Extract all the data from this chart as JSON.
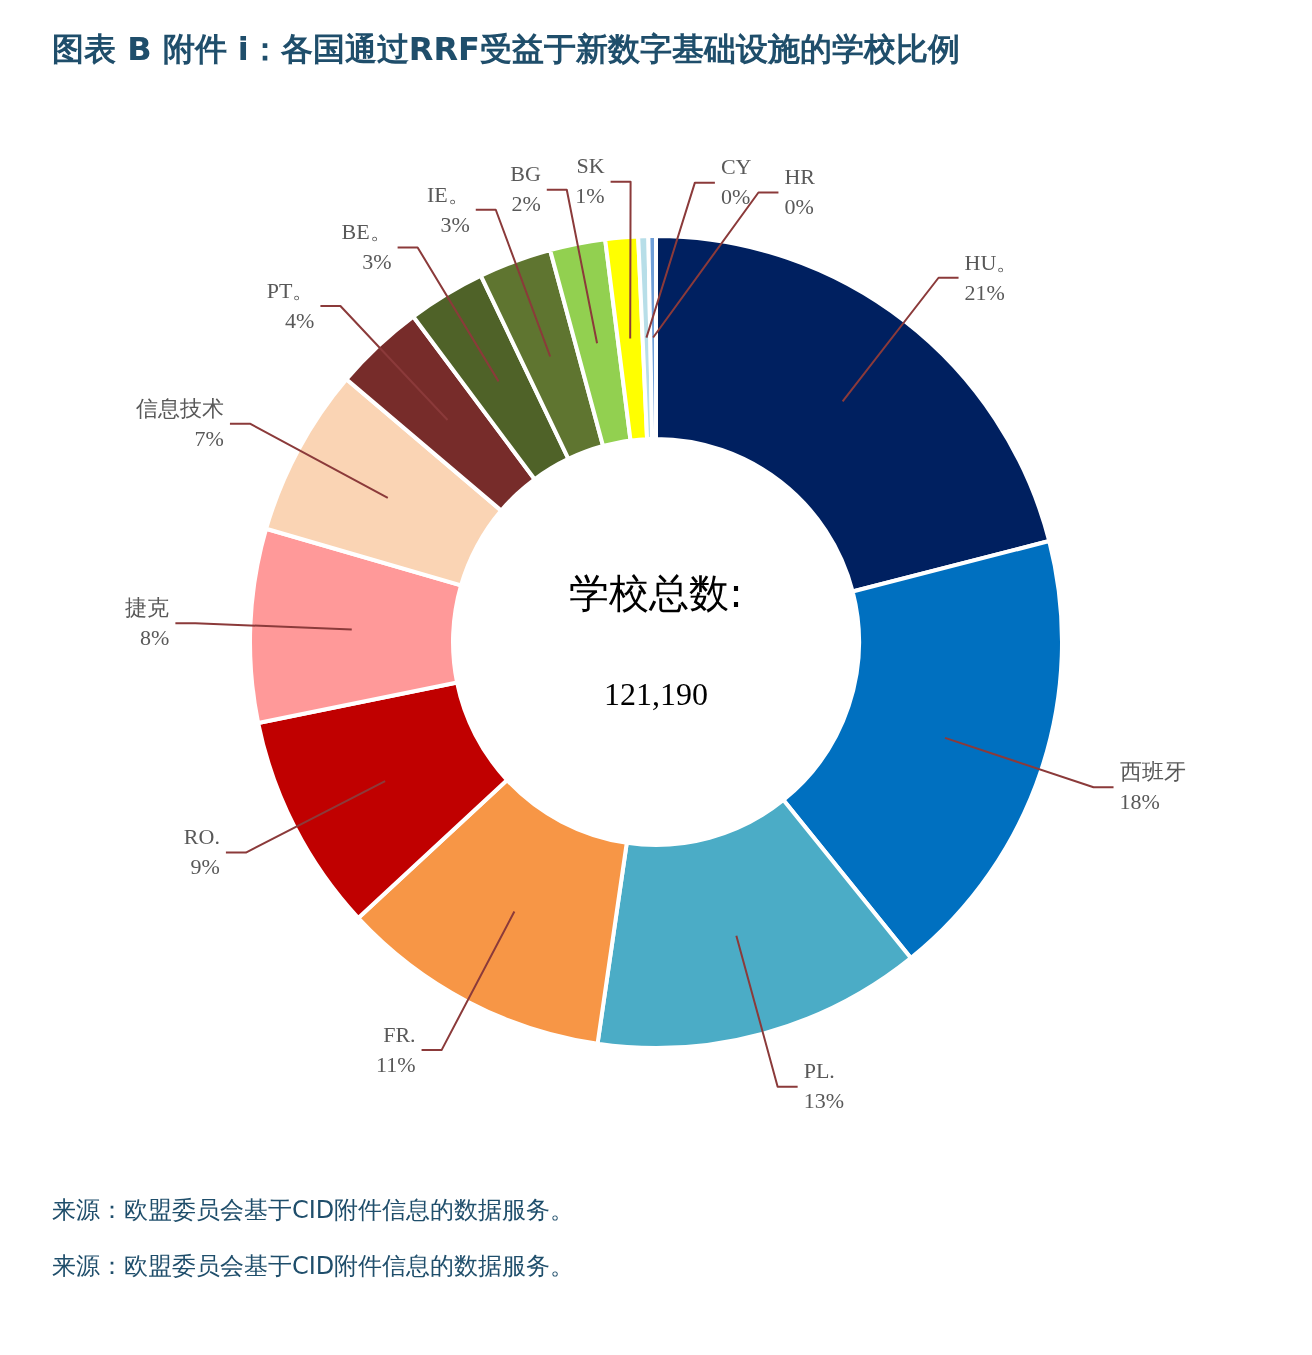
{
  "chart_data": {
    "type": "donut",
    "title": "图表 B 附件 i：各国通过RRF受益于新数字基础设施的学校比例",
    "categories": [
      "HU。",
      "西班牙",
      "PL.",
      "FR.",
      "RO.",
      "捷克",
      "信息技术",
      "PT。",
      "BE。",
      "IE。",
      "BG",
      "SK",
      "CY",
      "HR"
    ],
    "values": [
      21.0,
      18.2,
      13.1,
      10.8,
      8.7,
      7.7,
      6.7,
      3.6,
      3.1,
      2.9,
      2.2,
      1.3,
      0.4,
      0.3
    ],
    "value_labels": [
      "21%",
      "18%",
      "13%",
      "11%",
      "9%",
      "8%",
      "7%",
      "4%",
      "3%",
      "3%",
      "2%",
      "1%",
      "0%",
      "0%"
    ],
    "colors": [
      "#002060",
      "#0070c0",
      "#4bacc6",
      "#f79646",
      "#c00000",
      "#ff9999",
      "#fad4b4",
      "#772c2a",
      "#4f6228",
      "#5f7530",
      "#92d050",
      "#ffff00",
      "#b7dee8",
      "#6f9fd8"
    ],
    "annotations": [
      "学校总数:",
      "121,190",
      "来源：欧盟委员会基于CID附件信息的数据服务。",
      "来源：欧盟委员会基于CID附件信息的数据服务。"
    ],
    "legend": false
  }
}
